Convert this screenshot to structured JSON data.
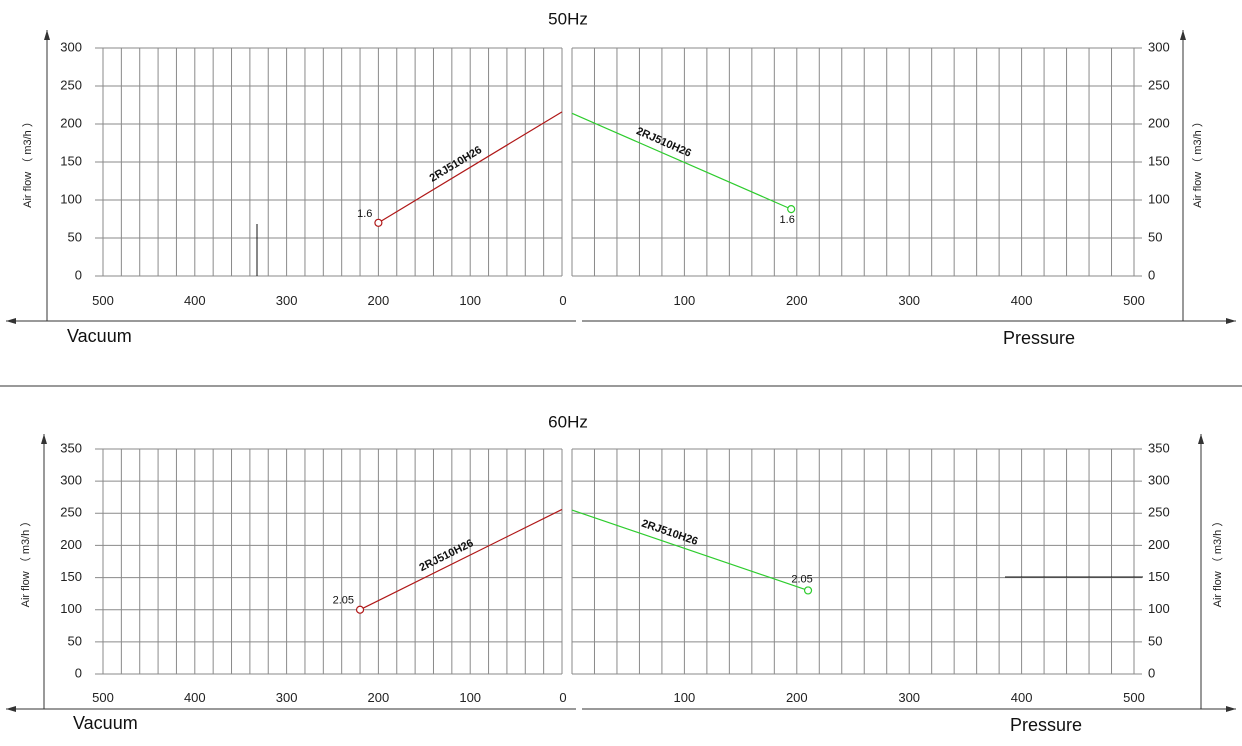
{
  "chart_data": [
    {
      "type": "line",
      "title": "50Hz",
      "ylabel": "Air flow （ m3/h ）",
      "ylim": [
        0,
        300
      ],
      "yticks": [
        0,
        50,
        100,
        150,
        200,
        250,
        300
      ],
      "xticks": [
        0,
        100,
        200,
        300,
        400,
        500
      ],
      "xlim": [
        0,
        500
      ],
      "left_axis_word": "Vacuum",
      "right_axis_word": "Pressure",
      "series": [
        {
          "name": "2RJ510H26",
          "side": "vacuum",
          "color": "#b01818",
          "points": [
            [
              0,
              216
            ],
            [
              200,
              70
            ]
          ],
          "end_label": "1.6"
        },
        {
          "name": "2RJ510H26",
          "side": "pressure",
          "color": "#2ecc2e",
          "points": [
            [
              0,
              214
            ],
            [
              195,
              88
            ]
          ],
          "end_label": "1.6"
        }
      ]
    },
    {
      "type": "line",
      "title": "60Hz",
      "ylabel": "Air flow （ m3/h ）",
      "ylim": [
        0,
        350
      ],
      "yticks": [
        0,
        50,
        100,
        150,
        200,
        250,
        300,
        350
      ],
      "xticks": [
        0,
        100,
        200,
        300,
        400,
        500
      ],
      "xlim": [
        0,
        500
      ],
      "left_axis_word": "Vacuum",
      "right_axis_word": "Pressure",
      "series": [
        {
          "name": "2RJ510H26",
          "side": "vacuum",
          "color": "#b01818",
          "points": [
            [
              0,
              256
            ],
            [
              220,
              100
            ]
          ],
          "end_label": "2.05"
        },
        {
          "name": "2RJ510H26",
          "side": "pressure",
          "color": "#2ecc2e",
          "points": [
            [
              0,
              255
            ],
            [
              210,
              130
            ]
          ],
          "end_label": "2.05"
        }
      ]
    }
  ]
}
